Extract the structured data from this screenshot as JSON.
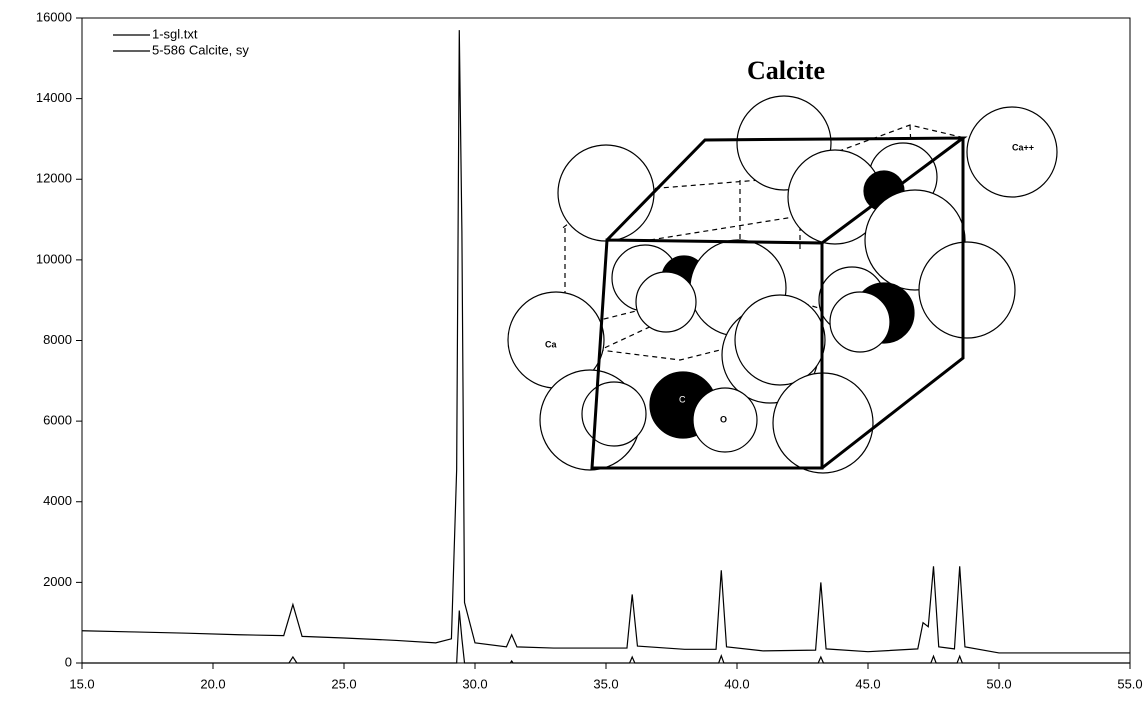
{
  "chart_data": {
    "type": "line",
    "xlim": [
      15,
      55
    ],
    "ylim": [
      0,
      16000
    ],
    "xticks": [
      {
        "value": 15,
        "label": "15.0"
      },
      {
        "value": 20,
        "label": "20.0"
      },
      {
        "value": 25,
        "label": "25.0"
      },
      {
        "value": 30,
        "label": "30.0"
      },
      {
        "value": 35,
        "label": "35.0"
      },
      {
        "value": 40,
        "label": "40.0"
      },
      {
        "value": 45,
        "label": "45.0"
      },
      {
        "value": 50,
        "label": "50.0"
      },
      {
        "value": 55,
        "label": "55.0"
      }
    ],
    "yticks": [
      0,
      2000,
      4000,
      6000,
      8000,
      10000,
      12000,
      14000,
      16000
    ],
    "series": [
      {
        "name": "1-sgl.txt",
        "color": "#000000",
        "x": [
          15.0,
          17.0,
          19.0,
          21.0,
          22.7,
          23.05,
          23.4,
          25.0,
          27.0,
          28.5,
          29.1,
          29.3,
          29.4,
          29.5,
          29.6,
          30.0,
          31.2,
          31.4,
          31.6,
          33.0,
          35.8,
          36.0,
          36.2,
          38.0,
          39.2,
          39.4,
          39.6,
          41.0,
          43.0,
          43.2,
          43.4,
          45.0,
          46.9,
          47.1,
          47.3,
          47.5,
          47.7,
          48.3,
          48.5,
          48.7,
          50.0,
          51.0,
          55.0
        ],
        "values": [
          800,
          770,
          740,
          700,
          680,
          1450,
          660,
          620,
          560,
          500,
          600,
          4800,
          15700,
          10700,
          1500,
          500,
          400,
          700,
          400,
          370,
          370,
          1700,
          420,
          340,
          340,
          2300,
          400,
          300,
          320,
          2000,
          350,
          280,
          350,
          1000,
          900,
          2400,
          400,
          350,
          2400,
          400,
          250,
          250,
          250
        ]
      },
      {
        "name": "5-586 Calcite, sy",
        "color": "#000000",
        "x": [
          15.0,
          22.9,
          23.05,
          23.2,
          29.3,
          29.4,
          29.5,
          29.6,
          31.35,
          31.4,
          31.45,
          35.9,
          36.0,
          36.1,
          39.3,
          39.4,
          39.5,
          43.1,
          43.2,
          43.3,
          47.4,
          47.5,
          47.6,
          48.4,
          48.5,
          48.6,
          55.0
        ],
        "values": [
          0,
          0,
          150,
          0,
          0,
          1300,
          600,
          0,
          0,
          50,
          0,
          0,
          150,
          0,
          0,
          180,
          0,
          0,
          150,
          0,
          0,
          170,
          0,
          0,
          170,
          0,
          0
        ]
      }
    ],
    "legend": "upper left",
    "inset": {
      "title": "Calcite",
      "labels": [
        "Ca++",
        "Ca",
        "C",
        "O"
      ]
    }
  }
}
